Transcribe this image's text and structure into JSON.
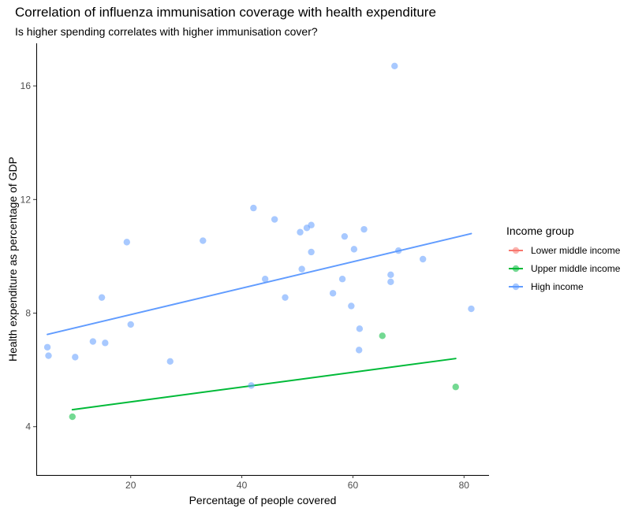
{
  "chart_data": {
    "type": "scatter",
    "title": "Correlation of influenza immunisation coverage with health expenditure",
    "subtitle": "Is higher spending correlates with higher immunisation cover?",
    "xlabel": "Percentage of people covered",
    "ylabel": "Health expenditure as percentage of GDP",
    "xlim": [
      3,
      84.5
    ],
    "ylim": [
      2.3,
      17.5
    ],
    "xticks": [
      20,
      40,
      60,
      80
    ],
    "yticks": [
      4,
      8,
      12,
      16
    ],
    "grid": false,
    "legend": {
      "title": "Income group",
      "position": "right",
      "entries": [
        {
          "label": "Lower middle income",
          "color": "#F8766D"
        },
        {
          "label": "Upper middle income",
          "color": "#00BA38"
        },
        {
          "label": "High income",
          "color": "#619CFF"
        }
      ]
    },
    "series": [
      {
        "name": "Lower middle income",
        "color": "#F8766D",
        "points": [],
        "fit": null
      },
      {
        "name": "Upper middle income",
        "color": "#00BA38",
        "points": [
          [
            9.5,
            4.35
          ],
          [
            65.3,
            7.2
          ],
          [
            78.5,
            5.4
          ]
        ],
        "fit": [
          [
            9.5,
            4.6
          ],
          [
            78.5,
            6.4
          ]
        ]
      },
      {
        "name": "High income",
        "color": "#619CFF",
        "points": [
          [
            67.5,
            16.7
          ],
          [
            42.1,
            11.7
          ],
          [
            45.9,
            11.3
          ],
          [
            52.5,
            11.1
          ],
          [
            51.7,
            11.0
          ],
          [
            62.0,
            10.95
          ],
          [
            50.5,
            10.85
          ],
          [
            58.5,
            10.7
          ],
          [
            19.3,
            10.5
          ],
          [
            33.0,
            10.55
          ],
          [
            60.2,
            10.25
          ],
          [
            52.5,
            10.15
          ],
          [
            68.2,
            10.2
          ],
          [
            72.6,
            9.9
          ],
          [
            50.8,
            9.55
          ],
          [
            66.8,
            9.35
          ],
          [
            44.2,
            9.2
          ],
          [
            58.1,
            9.2
          ],
          [
            66.8,
            9.1
          ],
          [
            56.4,
            8.7
          ],
          [
            47.8,
            8.55
          ],
          [
            14.8,
            8.55
          ],
          [
            59.7,
            8.25
          ],
          [
            81.3,
            8.15
          ],
          [
            20.0,
            7.6
          ],
          [
            61.2,
            7.45
          ],
          [
            13.2,
            7.0
          ],
          [
            15.4,
            6.95
          ],
          [
            5.0,
            6.8
          ],
          [
            61.1,
            6.7
          ],
          [
            5.2,
            6.5
          ],
          [
            10.0,
            6.45
          ],
          [
            27.1,
            6.3
          ],
          [
            41.7,
            5.45
          ]
        ],
        "fit": [
          [
            5.0,
            7.25
          ],
          [
            81.3,
            10.8
          ]
        ]
      }
    ]
  }
}
